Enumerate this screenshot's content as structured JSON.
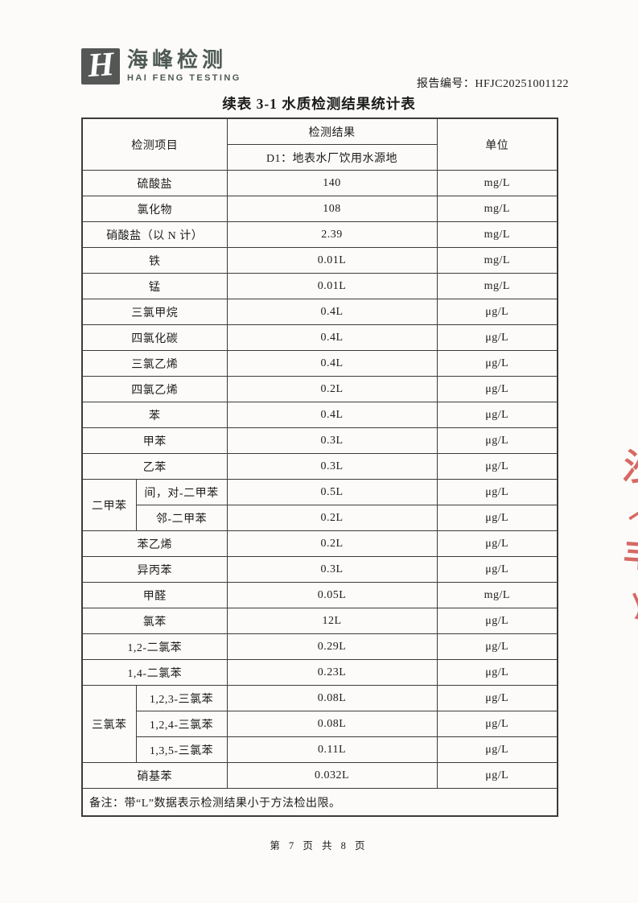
{
  "header": {
    "logo_symbol": "H",
    "company_cn": "海峰检测",
    "company_en": "HAI FENG TESTING",
    "report_no_label": "报告编号：",
    "report_no": "HFJC20251001122",
    "logo_color": "#4f5a55"
  },
  "title": "续表 3-1 水质检测结果统计表",
  "table": {
    "header": {
      "item": "检测项目",
      "result": "检测结果",
      "sample": "D1：地表水厂饮用水源地",
      "unit": "单位"
    },
    "rows": [
      {
        "label": "硫酸盐",
        "value": "140",
        "unit": "mg/L"
      },
      {
        "label": "氯化物",
        "value": "108",
        "unit": "mg/L"
      },
      {
        "label": "硝酸盐（以 N 计）",
        "value": "2.39",
        "unit": "mg/L"
      },
      {
        "label": "铁",
        "value": "0.01L",
        "unit": "mg/L"
      },
      {
        "label": "锰",
        "value": "0.01L",
        "unit": "mg/L"
      },
      {
        "label": "三氯甲烷",
        "value": "0.4L",
        "unit": "μg/L"
      },
      {
        "label": "四氯化碳",
        "value": "0.4L",
        "unit": "μg/L"
      },
      {
        "label": "三氯乙烯",
        "value": "0.4L",
        "unit": "μg/L"
      },
      {
        "label": "四氯乙烯",
        "value": "0.2L",
        "unit": "μg/L"
      },
      {
        "label": "苯",
        "value": "0.4L",
        "unit": "μg/L"
      },
      {
        "label": "甲苯",
        "value": "0.3L",
        "unit": "μg/L"
      },
      {
        "label": "乙苯",
        "value": "0.3L",
        "unit": "μg/L"
      },
      {
        "group": "二甲苯",
        "group_span": 2,
        "label": "间，对-二甲苯",
        "value": "0.5L",
        "unit": "μg/L"
      },
      {
        "in_group": true,
        "label": "邻-二甲苯",
        "value": "0.2L",
        "unit": "μg/L"
      },
      {
        "label": "苯乙烯",
        "value": "0.2L",
        "unit": "μg/L"
      },
      {
        "label": "异丙苯",
        "value": "0.3L",
        "unit": "μg/L"
      },
      {
        "label": "甲醛",
        "value": "0.05L",
        "unit": "mg/L"
      },
      {
        "label": "氯苯",
        "value": "12L",
        "unit": "μg/L"
      },
      {
        "label": "1,2-二氯苯",
        "value": "0.29L",
        "unit": "μg/L"
      },
      {
        "label": "1,4-二氯苯",
        "value": "0.23L",
        "unit": "μg/L"
      },
      {
        "group": "三氯苯",
        "group_span": 3,
        "label": "1,2,3-三氯苯",
        "value": "0.08L",
        "unit": "μg/L"
      },
      {
        "in_group": true,
        "label": "1,2,4-三氯苯",
        "value": "0.08L",
        "unit": "μg/L"
      },
      {
        "in_group": true,
        "label": "1,3,5-三氯苯",
        "value": "0.11L",
        "unit": "μg/L"
      },
      {
        "label": "硝基苯",
        "value": "0.032L",
        "unit": "μg/L"
      }
    ],
    "note": "备注：带“L”数据表示检测结果小于方法检出限。"
  },
  "footer": "第 7 页 共 8 页",
  "stamp": {
    "color": "#d0504b",
    "fragments": [
      "沙",
      "㇀",
      "丰",
      "丿"
    ]
  }
}
